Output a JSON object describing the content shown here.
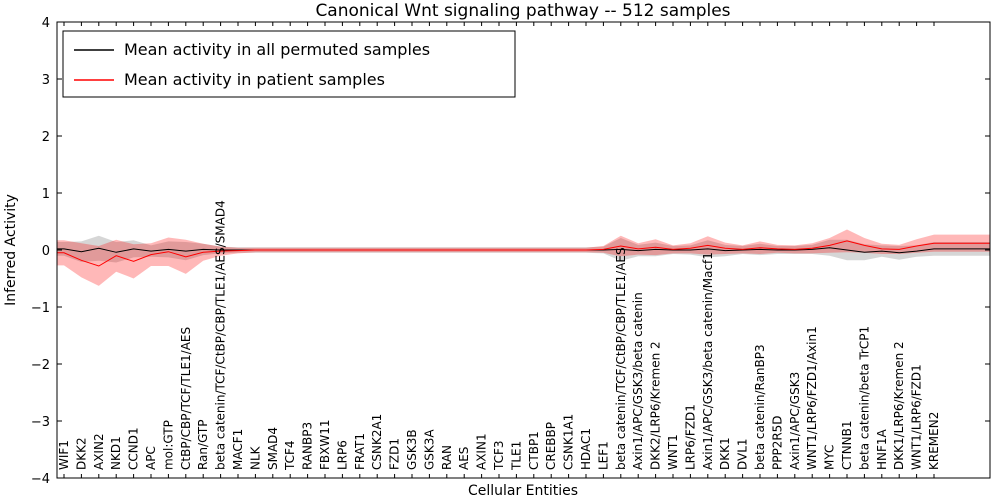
{
  "chart_data": {
    "type": "line",
    "title": "Canonical Wnt signaling pathway -- 512 samples",
    "xlabel": "Cellular Entities",
    "ylabel": "Inferred Activity",
    "ylim": [
      -4,
      4
    ],
    "yticks": [
      -4,
      -3,
      -2,
      -1,
      0,
      1,
      2,
      3,
      4
    ],
    "grid": false,
    "legend_position": "upper left",
    "categories": [
      "WIF1",
      "DKK2",
      "AXIN2",
      "NKD1",
      "CCND1",
      "APC",
      "mol:GTP",
      "CtBP/CBP/TCF/TLE1/AES",
      "Ran/GTP",
      "beta catenin/TCF/CtBP/CBP/TLE1/AES/SMAD4",
      "MACF1",
      "NLK",
      "SMAD4",
      "TCF4",
      "RANBP3",
      "FBXW11",
      "LRP6",
      "FRAT1",
      "CSNK2A1",
      "FZD1",
      "GSK3B",
      "GSK3A",
      "RAN",
      "AES",
      "AXIN1",
      "TCF3",
      "TLE1",
      "CTBP1",
      "CREBBP",
      "CSNK1A1",
      "HDAC1",
      "LEF1",
      "beta catenin/TCF/CtBP/CBP/TLE1/AES",
      "Axin1/APC/GSK3/beta catenin",
      "DKK2/LRP6/Kremen 2",
      "WNT1",
      "LRP6/FZD1",
      "Axin1/APC/GSK3/beta catenin/Macf1",
      "DKK1",
      "DVL1",
      "beta catenin/RanBP3",
      "PPP2R5D",
      "Axin1/APC/GSK3",
      "WNT1/LRP6/FZD1/Axin1",
      "MYC",
      "CTNNB1",
      "beta catenin/beta TrCP1",
      "HNF1A",
      "DKK1/LRP6/Kremen 2",
      "WNT1/LRP6/FZD1",
      "KREMEN2"
    ],
    "series": [
      {
        "name": "Mean activity in all permuted samples",
        "color": "#000000",
        "band_alpha": 0.16,
        "values": [
          0.02,
          -0.03,
          0.03,
          -0.04,
          0.02,
          -0.02,
          0.01,
          -0.02,
          0.01,
          0.0,
          0.0,
          0.0,
          0.0,
          0.0,
          0.0,
          0.0,
          0.0,
          0.0,
          0.0,
          0.0,
          0.0,
          0.0,
          0.0,
          0.0,
          0.0,
          0.0,
          0.0,
          0.0,
          0.0,
          0.0,
          0.0,
          0.0,
          0.01,
          -0.01,
          0.01,
          0.0,
          0.0,
          0.02,
          -0.01,
          0.0,
          0.01,
          0.0,
          0.0,
          0.01,
          0.04,
          0.0,
          -0.04,
          -0.02,
          -0.05,
          -0.02,
          0.02
        ],
        "band": [
          0.12,
          0.18,
          0.22,
          0.18,
          0.15,
          0.1,
          0.14,
          0.16,
          0.1,
          0.06,
          0.05,
          0.05,
          0.05,
          0.05,
          0.05,
          0.05,
          0.05,
          0.05,
          0.05,
          0.05,
          0.05,
          0.05,
          0.05,
          0.05,
          0.05,
          0.05,
          0.05,
          0.05,
          0.05,
          0.05,
          0.05,
          0.06,
          0.2,
          0.1,
          0.12,
          0.07,
          0.08,
          0.15,
          0.1,
          0.07,
          0.1,
          0.07,
          0.07,
          0.08,
          0.14,
          0.18,
          0.14,
          0.1,
          0.12,
          0.1,
          0.12
        ]
      },
      {
        "name": "Mean activity in patient samples",
        "color": "#ff0000",
        "band_alpha": 0.28,
        "values": [
          -0.05,
          -0.18,
          -0.28,
          -0.1,
          -0.2,
          -0.08,
          -0.03,
          -0.12,
          -0.04,
          -0.02,
          -0.01,
          0.0,
          0.0,
          0.0,
          0.0,
          0.0,
          0.0,
          0.0,
          0.0,
          0.0,
          0.0,
          0.0,
          0.0,
          0.0,
          0.0,
          0.0,
          0.0,
          0.0,
          0.0,
          0.0,
          0.0,
          0.01,
          0.07,
          0.02,
          0.05,
          0.01,
          0.03,
          0.08,
          0.03,
          0.01,
          0.04,
          0.02,
          0.01,
          0.03,
          0.08,
          0.16,
          0.08,
          0.02,
          0.01,
          0.07,
          0.12
        ],
        "band": [
          0.22,
          0.3,
          0.35,
          0.28,
          0.3,
          0.2,
          0.25,
          0.3,
          0.15,
          0.08,
          0.05,
          0.04,
          0.04,
          0.04,
          0.04,
          0.04,
          0.04,
          0.04,
          0.04,
          0.04,
          0.04,
          0.04,
          0.04,
          0.04,
          0.04,
          0.04,
          0.04,
          0.04,
          0.04,
          0.04,
          0.04,
          0.06,
          0.18,
          0.1,
          0.14,
          0.07,
          0.09,
          0.16,
          0.1,
          0.07,
          0.11,
          0.07,
          0.07,
          0.09,
          0.13,
          0.2,
          0.13,
          0.09,
          0.08,
          0.12,
          0.15
        ]
      }
    ]
  }
}
